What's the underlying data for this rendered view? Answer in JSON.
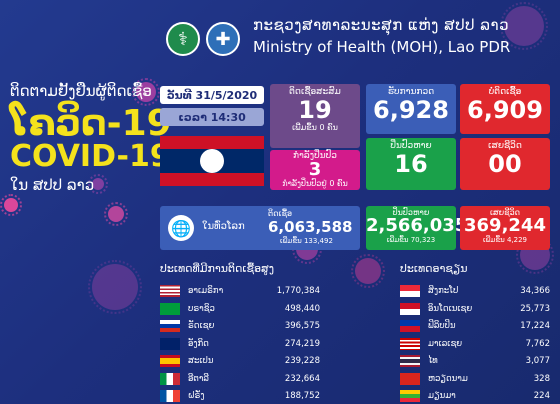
{
  "header": {
    "ministry_lao": "ກະຊວງສາທາລະນະສຸກ ແຫ່ງ ສປປ ລາວ",
    "ministry_en": "Ministry of Health (MOH), Lao PDR"
  },
  "title": {
    "subtitle_lao": "ຕິດຕາມຢັ້ງຢືນຜູ້ຕິດເຊື້ອ",
    "disease_lao": "ໂຄວິດ-19",
    "disease_en": "COVID-19",
    "country_lao": "ໃນ ສປປ ລາວ"
  },
  "date_label": "ວັນທີ 31/5/2020",
  "time_label": "ເວລາ 14:30",
  "laos": {
    "cumulative": {
      "label": "ຕິດເຊື້ອສະສົມ",
      "value": "19",
      "sub": "ເພີ່ມຂຶ້ນ 0 ຄົນ"
    },
    "treating": {
      "label": "ກໍາລັງປິ່ນປົວ",
      "value": "3",
      "sub": "ກໍາລັງປິ່ນປົວຢູ່ 0 ຄົນ"
    },
    "tested": {
      "label": "ຮັບການກວດ",
      "value": "6,928"
    },
    "negative": {
      "label": "ບໍ່ຕິດເຊື້ອ",
      "value": "6,909"
    },
    "recovered": {
      "label": "ປິ່ນປົວຫາຍ",
      "value": "16"
    },
    "deaths": {
      "label": "ເສຍຊີວິດ",
      "value": "00"
    }
  },
  "world": {
    "label": "ໃນທົ່ວໂລກ",
    "cases": {
      "label": "ຕິດເຊື້ອ",
      "value": "6,063,588",
      "sub": "ເພີ່ມຂຶ້ນ 133,492"
    },
    "recovered": {
      "label": "ປິ່ນປົວຫາຍ",
      "value": "2,566,035",
      "sub": "ເພີ່ມຂຶ້ນ 70,323"
    },
    "deaths": {
      "label": "ເສຍຊີວິດ",
      "value": "369,244",
      "sub": "ເພີ່ມຂຶ້ນ 4,229"
    }
  },
  "top_countries": {
    "title": "ປະເທດທີ່ມີການຕິດເຊື້ອສູງ",
    "rows": [
      {
        "name": "ອາເມຣິກາ",
        "value": "1,770,384",
        "flag": "us"
      },
      {
        "name": "ບຣາຊິວ",
        "value": "498,440",
        "flag": "br"
      },
      {
        "name": "ຣັດເຊຍ",
        "value": "396,575",
        "flag": "ru"
      },
      {
        "name": "ອັງກິດ",
        "value": "274,219",
        "flag": "gb"
      },
      {
        "name": "ສະເປນ",
        "value": "239,228",
        "flag": "es"
      },
      {
        "name": "ອີຕາລີ",
        "value": "232,664",
        "flag": "it"
      },
      {
        "name": "ຝຣັ່ງ",
        "value": "188,752",
        "flag": "fr"
      }
    ]
  },
  "asean": {
    "title": "ປະເທດອາຊຽນ",
    "rows": [
      {
        "name": "ສິງກະໂປ",
        "value": "34,366",
        "flag": "sg"
      },
      {
        "name": "ອິນໂດເນເຊຍ",
        "value": "25,773",
        "flag": "id"
      },
      {
        "name": "ຟິລິບປິນ",
        "value": "17,224",
        "flag": "ph"
      },
      {
        "name": "ມາເລເຊຍ",
        "value": "7,762",
        "flag": "my"
      },
      {
        "name": "ໄທ",
        "value": "3,077",
        "flag": "th"
      },
      {
        "name": "ຫວຽດນາມ",
        "value": "328",
        "flag": "vn"
      },
      {
        "name": "ມຽນມາ",
        "value": "224",
        "flag": "mm"
      }
    ]
  }
}
